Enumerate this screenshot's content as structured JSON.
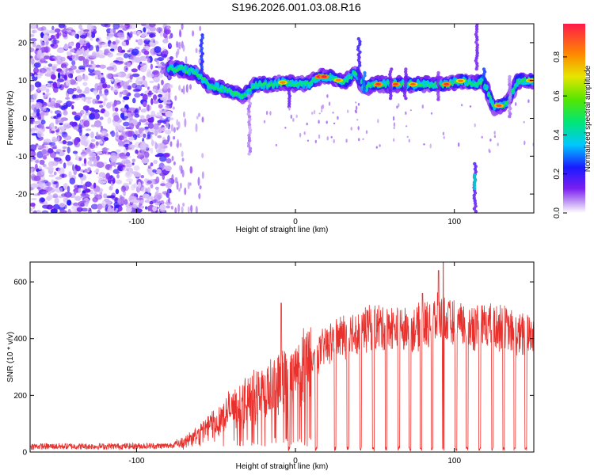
{
  "chart_data": [
    {
      "type": "heatmap",
      "title": "S196.2026.001.03.08.R16",
      "xlabel": "Height of straight line (km)",
      "ylabel": "Frequency (Hz)",
      "xlim": [
        -167,
        150
      ],
      "ylim": [
        -25,
        25
      ],
      "xticks": [
        -100,
        0,
        100
      ],
      "yticks": [
        -20,
        -10,
        0,
        10,
        20
      ],
      "colorbar": {
        "label": "Normalized spectral amplitude",
        "range": [
          0,
          0.97
        ],
        "ticks": [
          "0.0",
          "0.2",
          "0.4",
          "0.6",
          "0.8"
        ]
      },
      "trace": [
        {
          "x": -80,
          "y": 13
        },
        {
          "x": -72,
          "y": 13
        },
        {
          "x": -62,
          "y": 12
        },
        {
          "x": -55,
          "y": 9
        },
        {
          "x": -48,
          "y": 8
        },
        {
          "x": -40,
          "y": 7
        },
        {
          "x": -32,
          "y": 6
        },
        {
          "x": -25,
          "y": 9
        },
        {
          "x": -15,
          "y": 9
        },
        {
          "x": -8,
          "y": 9.5
        },
        {
          "x": 0,
          "y": 9
        },
        {
          "x": 8,
          "y": 9
        },
        {
          "x": 15,
          "y": 11
        },
        {
          "x": 22,
          "y": 11
        },
        {
          "x": 30,
          "y": 9.5
        },
        {
          "x": 38,
          "y": 12
        },
        {
          "x": 43,
          "y": 8
        },
        {
          "x": 50,
          "y": 9
        },
        {
          "x": 60,
          "y": 9
        },
        {
          "x": 70,
          "y": 9
        },
        {
          "x": 80,
          "y": 9
        },
        {
          "x": 95,
          "y": 9
        },
        {
          "x": 105,
          "y": 10
        },
        {
          "x": 112,
          "y": 9
        },
        {
          "x": 118,
          "y": 10
        },
        {
          "x": 125,
          "y": 3
        },
        {
          "x": 133,
          "y": 4
        },
        {
          "x": 140,
          "y": 10
        },
        {
          "x": 150,
          "y": 10
        }
      ],
      "scatter_region_x": [
        -167,
        -78
      ]
    },
    {
      "type": "line",
      "title": "",
      "xlabel": "Height of straight line (km)",
      "ylabel": "SNR (10 * v/v)",
      "xlim": [
        -167,
        150
      ],
      "ylim": [
        0,
        670
      ],
      "xticks": [
        -100,
        0,
        100
      ],
      "yticks": [
        0,
        200,
        400,
        600
      ],
      "color": "#e8302c",
      "envelope": [
        {
          "x": -167,
          "y": 20
        },
        {
          "x": -120,
          "y": 20
        },
        {
          "x": -80,
          "y": 22
        },
        {
          "x": -70,
          "y": 35
        },
        {
          "x": -60,
          "y": 70
        },
        {
          "x": -50,
          "y": 110
        },
        {
          "x": -40,
          "y": 150
        },
        {
          "x": -30,
          "y": 180
        },
        {
          "x": -20,
          "y": 210
        },
        {
          "x": -10,
          "y": 240
        },
        {
          "x": 0,
          "y": 270
        },
        {
          "x": 10,
          "y": 320
        },
        {
          "x": 20,
          "y": 380
        },
        {
          "x": 30,
          "y": 410
        },
        {
          "x": 40,
          "y": 430
        },
        {
          "x": 50,
          "y": 440
        },
        {
          "x": 60,
          "y": 440
        },
        {
          "x": 70,
          "y": 430
        },
        {
          "x": 80,
          "y": 440
        },
        {
          "x": 90,
          "y": 470
        },
        {
          "x": 100,
          "y": 450
        },
        {
          "x": 110,
          "y": 440
        },
        {
          "x": 120,
          "y": 450
        },
        {
          "x": 130,
          "y": 440
        },
        {
          "x": 140,
          "y": 410
        },
        {
          "x": 150,
          "y": 420
        }
      ],
      "dropouts_x": [
        -4,
        13,
        25,
        33,
        41,
        49,
        57,
        65,
        72,
        79,
        86,
        93,
        101,
        108,
        116,
        124,
        131,
        138,
        145
      ],
      "spikes": [
        {
          "x": -9,
          "y": 525
        },
        {
          "x": 45,
          "y": 500
        },
        {
          "x": 80,
          "y": 560
        },
        {
          "x": 90,
          "y": 640
        },
        {
          "x": 93,
          "y": 670
        }
      ]
    }
  ]
}
